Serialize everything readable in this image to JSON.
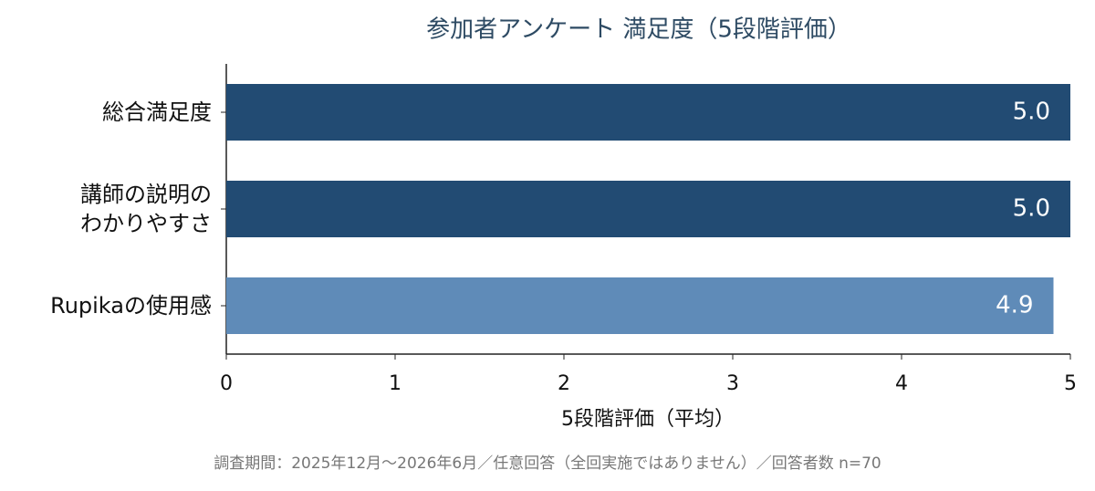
{
  "chart_data": {
    "type": "barh",
    "title": "参加者アンケート 満足度（5段階評価）",
    "categories": [
      "総合満足度",
      "講師の説明の\nわかりやすさ",
      "Rupikaの使用感"
    ],
    "values": [
      5.0,
      5.0,
      4.9
    ],
    "value_labels": [
      "5.0",
      "5.0",
      "4.9"
    ],
    "colors": [
      "#224b73",
      "#224b73",
      "#5f8bb8"
    ],
    "xlabel": "5段階評価（平均）",
    "xlim": [
      0,
      5
    ],
    "xticks": [
      0,
      1,
      2,
      3,
      4,
      5
    ],
    "grid": false,
    "footnote": "調査期間：2025年12月〜2026年6月／任意回答（全回実施ではありません）／回答者数 n=70"
  }
}
